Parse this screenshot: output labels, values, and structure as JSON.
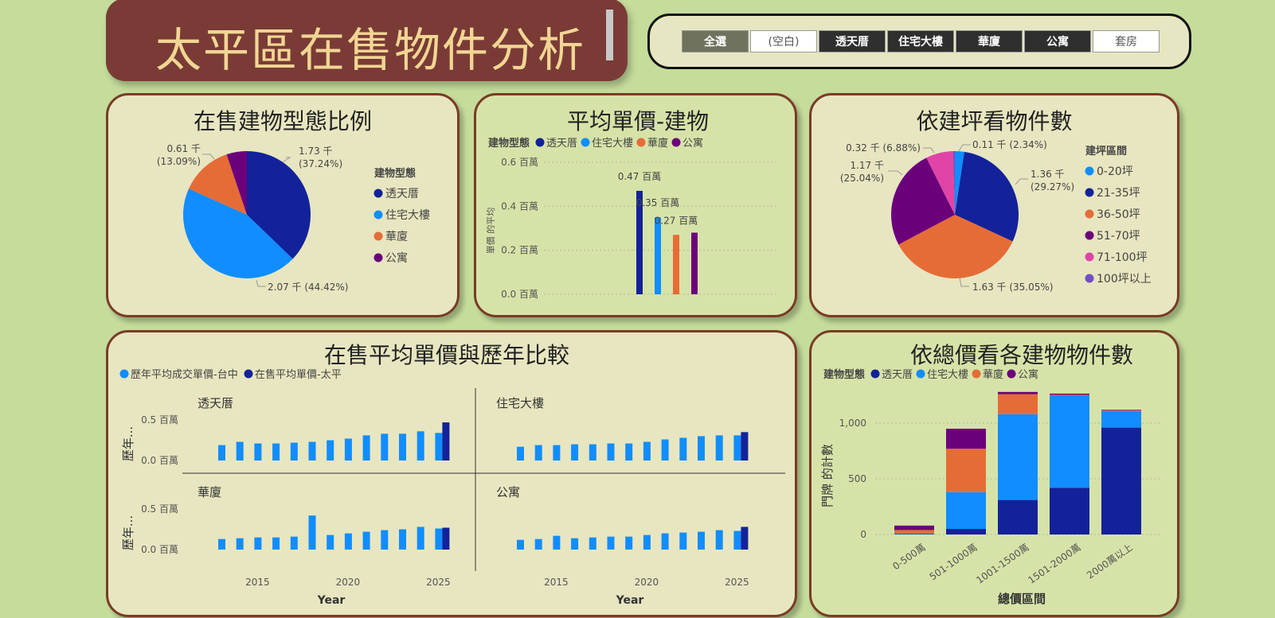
{
  "header": {
    "title": "太平區在售物件分析"
  },
  "slicer": {
    "options": [
      {
        "label": "全選",
        "state": "sel"
      },
      {
        "label": "(空白)",
        "state": "light"
      },
      {
        "label": "透天厝",
        "state": "dark"
      },
      {
        "label": "住宅大樓",
        "state": "dark"
      },
      {
        "label": "華廈",
        "state": "dark"
      },
      {
        "label": "公寓",
        "state": "dark"
      },
      {
        "label": "套房",
        "state": "light"
      }
    ]
  },
  "chart_data": [
    {
      "id": "pie1",
      "type": "pie",
      "title": "在售建物型態比例",
      "legend_title": "建物型態",
      "slices": [
        {
          "name": "透天厝",
          "value": 1.73,
          "label": "1.73 千",
          "pct": "(37.24%)",
          "color": "#13229a"
        },
        {
          "name": "住宅大樓",
          "value": 2.07,
          "label": "2.07 千 (44.42%)",
          "pct": "",
          "color": "#118dff"
        },
        {
          "name": "華廈",
          "value": 0.61,
          "label": "0.61 千",
          "pct": "(13.09%)",
          "color": "#e66c37"
        },
        {
          "name": "公寓",
          "value": 0.24,
          "label": "",
          "pct": "",
          "color": "#6b007b"
        }
      ]
    },
    {
      "id": "bar1",
      "type": "bar",
      "title": "平均單價-建物",
      "legend_title": "建物型態",
      "ylabel": "單價 的平均",
      "ylim": [
        0,
        0.6
      ],
      "yticks": [
        "0.0 百萬",
        "0.2 百萬",
        "0.4 百萬",
        "0.6 百萬"
      ],
      "series": [
        {
          "name": "透天厝",
          "value": 0.47,
          "label": "0.47 百萬",
          "color": "#13229a"
        },
        {
          "name": "住宅大樓",
          "value": 0.35,
          "label": "0.35 百萬",
          "color": "#118dff"
        },
        {
          "name": "華廈",
          "value": 0.27,
          "label": "0.27 百萬",
          "color": "#e66c37"
        },
        {
          "name": "公寓",
          "value": 0.28,
          "label": "",
          "color": "#6b007b"
        }
      ]
    },
    {
      "id": "pie2",
      "type": "pie",
      "title": "依建坪看物件數",
      "legend_title": "建坪區間",
      "slices": [
        {
          "name": "0-20坪",
          "value": 0.11,
          "label": "0.11 千 (2.34%)",
          "pct": "",
          "color": "#118dff"
        },
        {
          "name": "21-35坪",
          "value": 1.36,
          "label": "1.36 千",
          "pct": "(29.27%)",
          "color": "#13229a"
        },
        {
          "name": "36-50坪",
          "value": 1.63,
          "label": "1.63 千 (35.05%)",
          "pct": "",
          "color": "#e66c37"
        },
        {
          "name": "51-70坪",
          "value": 1.17,
          "label": "1.17 千",
          "pct": "(25.04%)",
          "color": "#6b007b"
        },
        {
          "name": "71-100坪",
          "value": 0.32,
          "label": "0.32 千 (6.88%)",
          "pct": "",
          "color": "#e044a7"
        },
        {
          "name": "100坪以上",
          "value": 0.02,
          "label": "",
          "pct": "",
          "color": "#744ec2"
        }
      ]
    },
    {
      "id": "small",
      "type": "bar",
      "title": "在售平均單價與歷年比較",
      "legend": [
        {
          "name": "歷年平均成交單價-台中",
          "color": "#118dff"
        },
        {
          "name": "在售平均單價-太平",
          "color": "#13229a"
        }
      ],
      "ylabel": "歷年...",
      "xlabel": "Year",
      "yticks": [
        "0.0 百萬",
        "0.5 百萬"
      ],
      "xticks": [
        "2015",
        "2020",
        "2025"
      ],
      "years": [
        2013,
        2014,
        2015,
        2016,
        2017,
        2018,
        2019,
        2020,
        2021,
        2022,
        2023,
        2024,
        2025
      ],
      "panels": [
        {
          "name": "透天厝",
          "hist": [
            0.19,
            0.23,
            0.21,
            0.21,
            0.22,
            0.23,
            0.25,
            0.27,
            0.31,
            0.33,
            0.33,
            0.36,
            0.34
          ],
          "current": 0.47
        },
        {
          "name": "住宅大樓",
          "hist": [
            0.17,
            0.19,
            0.19,
            0.2,
            0.2,
            0.21,
            0.21,
            0.23,
            0.26,
            0.28,
            0.3,
            0.31,
            0.31
          ],
          "current": 0.35
        },
        {
          "name": "華廈",
          "hist": [
            0.13,
            0.14,
            0.15,
            0.15,
            0.16,
            0.42,
            0.18,
            0.2,
            0.22,
            0.24,
            0.25,
            0.28,
            0.26
          ],
          "current": 0.27
        },
        {
          "name": "公寓",
          "hist": [
            0.12,
            0.13,
            0.17,
            0.14,
            0.15,
            0.16,
            0.16,
            0.18,
            0.2,
            0.21,
            0.22,
            0.24,
            0.23
          ],
          "current": 0.28
        }
      ]
    },
    {
      "id": "stack",
      "type": "bar",
      "title": "依總價看各建物物件數",
      "legend_title": "建物型態",
      "xlabel": "總價區間",
      "ylabel": "門牌 的計數",
      "ylim": [
        0,
        1300
      ],
      "yticks": [
        "0",
        "500",
        "1,000"
      ],
      "categories": [
        "0-500萬",
        "501-1000萬",
        "1001-1500萬",
        "1501-2000萬",
        "2000萬以上"
      ],
      "series": [
        {
          "name": "透天厝",
          "color": "#13229a",
          "values": [
            5,
            50,
            310,
            420,
            960
          ]
        },
        {
          "name": "住宅大樓",
          "color": "#118dff",
          "values": [
            5,
            330,
            770,
            830,
            150
          ]
        },
        {
          "name": "華廈",
          "color": "#e66c37",
          "values": [
            30,
            390,
            180,
            5,
            5
          ]
        },
        {
          "name": "公寓",
          "color": "#6b007b",
          "values": [
            40,
            180,
            20,
            10,
            5
          ]
        }
      ]
    }
  ]
}
